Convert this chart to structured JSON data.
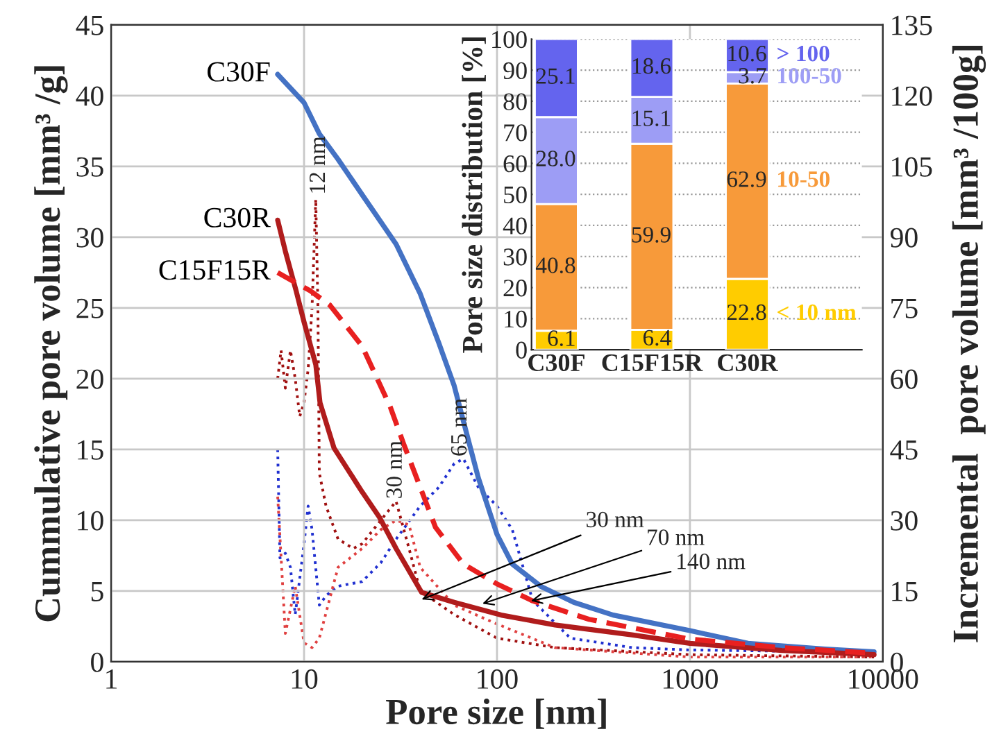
{
  "chart_data": [
    {
      "type": "line",
      "xlabel": "Pore size [nm]",
      "ylabel": "Cummulative pore volume [mm³ /g]",
      "y2label": "Incremental  pore volume [mm³ /100g]",
      "log": "x",
      "xlim": [
        1,
        10000
      ],
      "xticks": [
        1,
        10,
        100,
        1000,
        10000
      ],
      "ylim": [
        0,
        45
      ],
      "yticks": [
        0,
        5,
        10,
        15,
        20,
        25,
        30,
        35,
        40,
        45
      ],
      "y2lim": [
        0,
        135
      ],
      "y2ticks": [
        0,
        15,
        30,
        45,
        60,
        75,
        90,
        105,
        120,
        135
      ],
      "grid": true,
      "series": [
        {
          "name": "C30F",
          "color": "#4472c4",
          "line_style": "solid",
          "x": [
            7.3,
            10,
            12,
            15,
            20,
            30,
            40,
            50,
            60,
            70,
            80,
            100,
            120,
            170,
            250,
            400,
            1000,
            2000,
            5000,
            9000
          ],
          "values": [
            41.5,
            39.5,
            37.3,
            35.5,
            33,
            29.5,
            26,
            22.5,
            19.5,
            16,
            13,
            9,
            6.9,
            5.3,
            4.2,
            3.3,
            2.2,
            1.3,
            0.9,
            0.7
          ]
        },
        {
          "name": "C30R",
          "color": "#b01c1c",
          "line_style": "solid",
          "x": [
            7.3,
            8,
            9.1,
            10,
            11.5,
            12.1,
            14.3,
            20,
            24.6,
            30,
            40.7,
            60,
            105,
            200,
            500,
            1000,
            3000,
            9000
          ],
          "values": [
            31.2,
            29,
            26.2,
            24,
            21,
            18.3,
            15.1,
            12,
            10.2,
            8,
            4.9,
            4.2,
            3.3,
            2.6,
            1.9,
            1.3,
            0.8,
            0.5
          ]
        },
        {
          "name": "C15F15R",
          "color": "#e82020",
          "line_style": "dashed",
          "x": [
            7.3,
            9,
            10.8,
            13.6,
            20,
            28,
            32.8,
            48,
            67,
            100,
            153,
            300,
            1000,
            3000,
            9000
          ],
          "values": [
            27.5,
            26.8,
            26.2,
            25.2,
            22.3,
            18,
            15.4,
            9.5,
            6.9,
            5.5,
            4.3,
            3,
            1.6,
            1,
            0.6
          ]
        },
        {
          "color": "#2030d0",
          "line_style": "dotted",
          "axis": "y2",
          "x": [
            7.3,
            7.5,
            8,
            8.5,
            9,
            10,
            10.5,
            11,
            12,
            13,
            15,
            20,
            25,
            30,
            40,
            50,
            60,
            67,
            80,
            100,
            120,
            153,
            240,
            500,
            1000,
            9000
          ],
          "values": [
            45,
            22,
            23,
            20,
            10,
            25,
            33,
            28,
            12,
            14,
            16,
            17,
            21,
            26,
            33,
            37,
            42,
            43,
            37,
            33,
            28,
            13,
            5,
            3,
            2.5,
            2
          ]
        },
        {
          "color": "#a01010",
          "line_style": "dotted",
          "axis": "y2",
          "x": [
            7.3,
            7.6,
            8,
            8.5,
            9,
            9.5,
            10,
            10.5,
            11,
            11.5,
            11.8,
            12,
            13,
            15,
            18,
            20,
            25,
            30,
            35,
            40,
            60,
            100,
            200,
            1000,
            9000
          ],
          "values": [
            60,
            66,
            58,
            66,
            60,
            52,
            55,
            62,
            75,
            98,
            75,
            40,
            33,
            26,
            24,
            25,
            30,
            34,
            24,
            15,
            10,
            5,
            3,
            1.5,
            1
          ]
        },
        {
          "color": "#e04040",
          "line_style": "dotted",
          "axis": "y2",
          "x": [
            7.3,
            8,
            9,
            10,
            11,
            12,
            15,
            20,
            25,
            30,
            35,
            40,
            60,
            100,
            200,
            1000,
            9000
          ],
          "values": [
            35,
            6,
            16,
            4,
            3,
            5,
            20,
            24,
            28,
            30,
            29,
            20,
            12,
            8,
            3,
            1,
            1
          ]
        }
      ],
      "annotations": [
        {
          "text": "12 nm",
          "x": 12,
          "y": 33
        },
        {
          "text": "30 nm",
          "x": 30,
          "y": 11.5
        },
        {
          "text": "65 nm",
          "x": 65,
          "y": 14.5
        },
        {
          "text": "30 nm",
          "x": 40.7,
          "y": 4.4
        },
        {
          "text": "70 nm",
          "x": 84,
          "y": 4.1
        },
        {
          "text": "140 nm",
          "x": 150,
          "y": 4.3
        }
      ]
    },
    {
      "type": "bar",
      "stacked": true,
      "ylabel": "Pore size distribution [%]",
      "categories": [
        "C30F",
        "C15F15R",
        "C30R"
      ],
      "ylim": [
        0,
        100
      ],
      "yticks": [
        0,
        10,
        20,
        30,
        40,
        50,
        60,
        70,
        80,
        90,
        100
      ],
      "grid": "y",
      "data_labels": true,
      "series": [
        {
          "name": "< 10 nm",
          "color": "#ffcc00",
          "values": [
            6.1,
            6.4,
            22.8
          ]
        },
        {
          "name": "10-50",
          "color": "#f79a3a",
          "values": [
            40.8,
            59.9,
            62.9
          ]
        },
        {
          "name": "100-50",
          "color": "#9d9df5",
          "values": [
            28.0,
            15.1,
            3.7
          ],
          "value_labels": [
            "28.0",
            "15.1",
            "3.7"
          ]
        },
        {
          "name": "> 100",
          "color": "#6464ee",
          "values": [
            25.1,
            18.6,
            10.6
          ]
        }
      ]
    }
  ]
}
